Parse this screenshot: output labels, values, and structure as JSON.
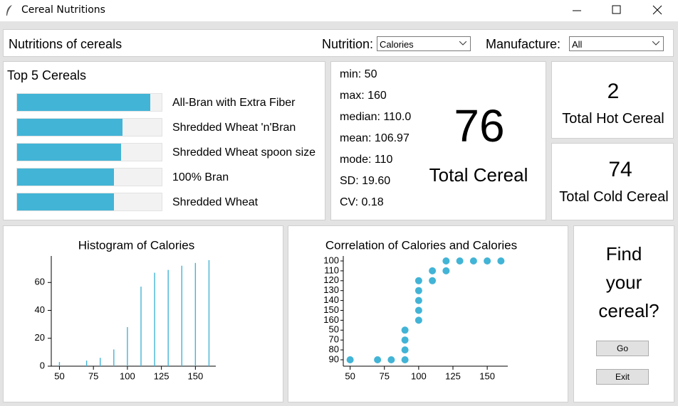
{
  "window": {
    "title": "Cereal Nutritions"
  },
  "header": {
    "title": "Nutritions of cereals",
    "nutrition_label": "Nutrition:",
    "nutrition_value": "Calories",
    "manufacture_label": "Manufacture:",
    "manufacture_value": "All"
  },
  "top5": {
    "title": "Top 5 Cereals",
    "names": [
      "All-Bran with Extra Fiber",
      "Shredded Wheat 'n'Bran",
      "Shredded Wheat spoon size",
      "100% Bran",
      "Shredded Wheat"
    ],
    "values": [
      92,
      73,
      72,
      67,
      67
    ],
    "lim": [
      0,
      100
    ],
    "color": "#42b4d6"
  },
  "stats": {
    "lines": [
      "min: 50",
      "max: 160",
      "median: 110.0",
      "mean: 106.97",
      "mode: 110",
      "SD: 19.60",
      "CV: 0.18"
    ]
  },
  "totals": {
    "total_value": 76,
    "total_label": "Total Cereal",
    "hot_value": 2,
    "hot_label": "Total Hot Cereal",
    "cold_value": 74,
    "cold_label": "Total Cold Cereal"
  },
  "find": {
    "lines": [
      "Find",
      "your",
      "cereal?"
    ],
    "buttons": [
      "Go",
      "Exit"
    ]
  },
  "chart_data": [
    {
      "type": "bar",
      "title": "Histogram of Calories",
      "x": [
        50,
        70,
        80,
        90,
        100,
        110,
        120,
        130,
        140,
        150,
        160
      ],
      "values": [
        3,
        4,
        6,
        12,
        28,
        57,
        67,
        69,
        72,
        74,
        76
      ],
      "color": "#42b4d6",
      "xlim": [
        44,
        165
      ],
      "xticks": [
        50,
        75,
        100,
        125,
        150
      ],
      "ylim": [
        0,
        79
      ],
      "yticks": [
        0,
        20,
        40,
        60
      ]
    },
    {
      "type": "scatter",
      "title": "Correlation of Calories and Calories",
      "categories": [
        "100",
        "110",
        "120",
        "130",
        "140",
        "150",
        "160",
        "50",
        "70",
        "80",
        "90"
      ],
      "x": [
        50,
        70,
        80,
        90,
        90,
        90,
        90,
        100,
        100,
        100,
        100,
        100,
        110,
        110,
        120,
        120,
        130,
        140,
        150,
        160
      ],
      "y": [
        "90",
        "90",
        "90",
        "90",
        "80",
        "70",
        "50",
        "160",
        "150",
        "140",
        "130",
        "120",
        "120",
        "110",
        "110",
        "100",
        "100",
        "100",
        "100",
        "100"
      ],
      "color": "#42b4d6",
      "xlim": [
        45,
        165
      ],
      "xticks": [
        50,
        75,
        100,
        125,
        150
      ]
    }
  ]
}
